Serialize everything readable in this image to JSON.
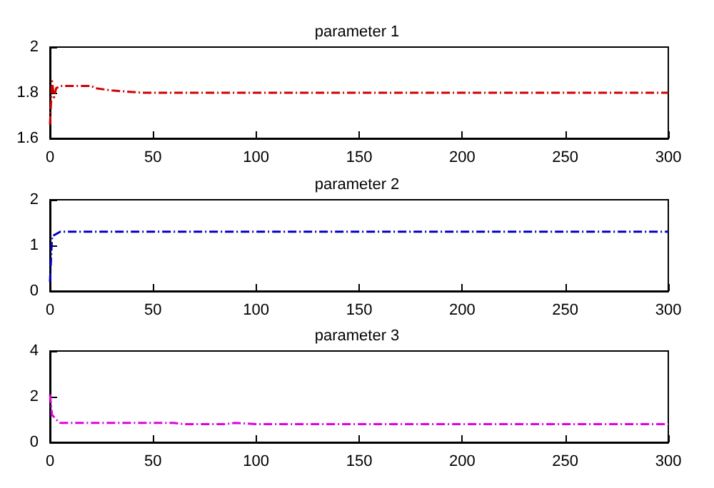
{
  "chart_data": [
    {
      "type": "line",
      "title": "parameter 1",
      "x": [
        0,
        1,
        2,
        3,
        5,
        20,
        22,
        30,
        45,
        100,
        300
      ],
      "series": [
        {
          "color": "#d00000",
          "values": [
            1.66,
            1.85,
            1.78,
            1.82,
            1.83,
            1.83,
            1.82,
            1.81,
            1.8,
            1.8,
            1.8
          ]
        }
      ],
      "xlim": [
        0,
        300
      ],
      "xticks": [
        0,
        50,
        100,
        150,
        200,
        250,
        300
      ],
      "ylim": [
        1.6,
        2
      ],
      "yticks": [
        1.6,
        1.8,
        2
      ],
      "grid": false,
      "marker": "none",
      "line_style": "dashed"
    },
    {
      "type": "line",
      "title": "parameter 2",
      "x": [
        0,
        1,
        3,
        5,
        300
      ],
      "series": [
        {
          "color": "#0000c0",
          "values": [
            0.2,
            1.2,
            1.25,
            1.3,
            1.3
          ]
        }
      ],
      "xlim": [
        0,
        300
      ],
      "xticks": [
        0,
        50,
        100,
        150,
        200,
        250,
        300
      ],
      "ylim": [
        0,
        2
      ],
      "yticks": [
        0,
        1,
        2
      ],
      "grid": false,
      "marker": "none",
      "line_style": "dashed"
    },
    {
      "type": "line",
      "title": "parameter 3",
      "x": [
        0,
        1,
        3,
        5,
        60,
        65,
        85,
        90,
        100,
        300
      ],
      "series": [
        {
          "color": "#e000e0",
          "values": [
            2.1,
            1.2,
            1.0,
            0.85,
            0.85,
            0.8,
            0.8,
            0.85,
            0.8,
            0.8
          ]
        }
      ],
      "xlim": [
        0,
        300
      ],
      "xticks": [
        0,
        50,
        100,
        150,
        200,
        250,
        300
      ],
      "ylim": [
        0,
        4
      ],
      "yticks": [
        0,
        2,
        4
      ],
      "grid": false,
      "marker": "none",
      "line_style": "dashed"
    }
  ]
}
